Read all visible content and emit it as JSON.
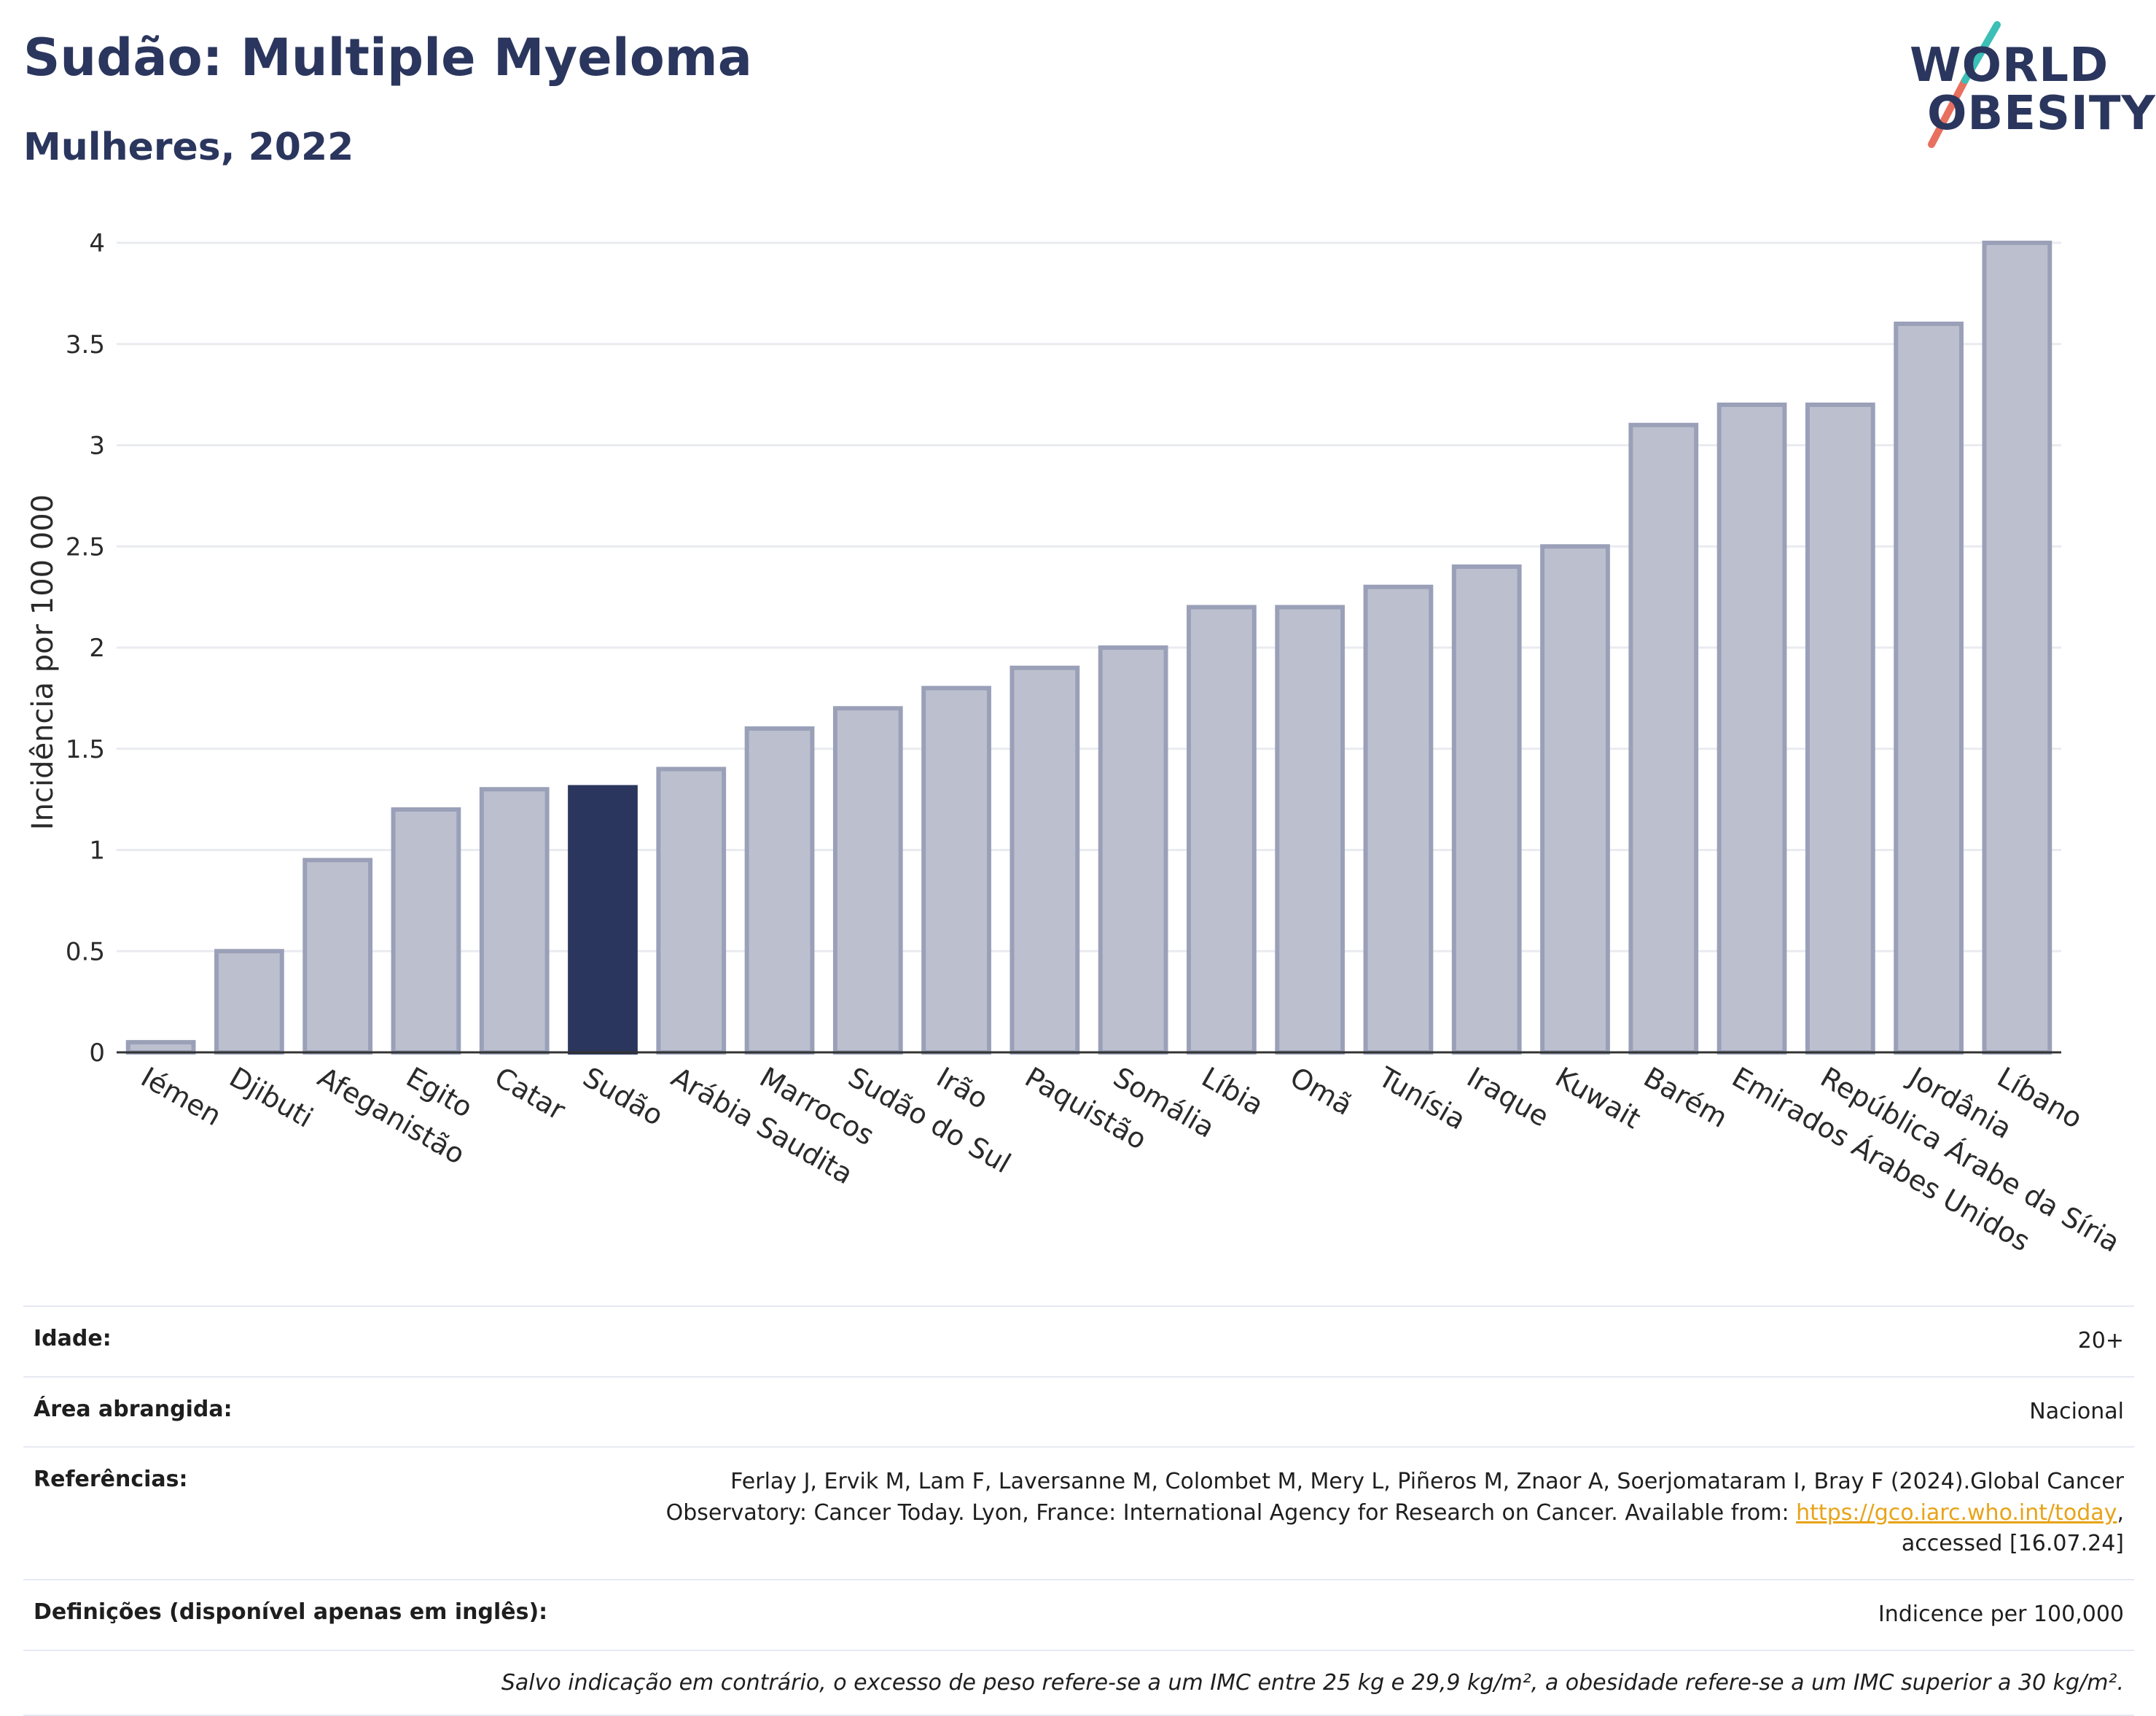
{
  "header": {
    "title": "Sudão: Multiple Myeloma",
    "subtitle": "Mulheres, 2022"
  },
  "logo": {
    "line1": "WORLD",
    "line2": "OBESITY",
    "icon": "world-obesity-slash-logo"
  },
  "colors": {
    "bar_default": "#bcc0ce",
    "bar_border": "#9aa0b8",
    "bar_highlight": "#2b365e",
    "grid": "#e9ebf0",
    "title": "#2b365e",
    "link": "#e8a317"
  },
  "chart_data": {
    "type": "bar",
    "ylabel": "Incidência por 100 000",
    "ylim": [
      0,
      4.2
    ],
    "yticks": [
      0,
      0.5,
      1,
      1.5,
      2,
      2.5,
      3,
      3.5,
      4
    ],
    "ytick_labels": [
      "0",
      "0.5",
      "1",
      "1.5",
      "2",
      "2.5",
      "3",
      "3.5",
      "4"
    ],
    "grid": true,
    "highlight": "Sudão",
    "categories": [
      "Iémen",
      "Djibuti",
      "Afeganistão",
      "Egito",
      "Catar",
      "Sudão",
      "Arábia Saudita",
      "Marrocos",
      "Sudão do Sul",
      "Irão",
      "Paquistão",
      "Somália",
      "Líbia",
      "Omã",
      "Tunísia",
      "Iraque",
      "Kuwait",
      "Barém",
      "Emirados Árabes Unidos",
      "República Árabe da Síria",
      "Jordânia",
      "Líbano"
    ],
    "values": [
      0.05,
      0.5,
      0.95,
      1.2,
      1.3,
      1.31,
      1.4,
      1.6,
      1.7,
      1.8,
      1.9,
      2.0,
      2.2,
      2.2,
      2.3,
      2.4,
      2.5,
      3.1,
      3.2,
      3.2,
      3.6,
      4.0
    ]
  },
  "info": {
    "age_label": "Idade:",
    "age_value": "20+",
    "area_label": "Área abrangida:",
    "area_value": "Nacional",
    "refs_label": "Referências:",
    "refs_text_1": "Ferlay J, Ervik M, Lam F, Laversanne M, Colombet M, Mery L, Piñeros M, Znaor A, Soerjomataram I, Bray F (2024).Global Cancer Observatory: Cancer Today. Lyon, France: International Agency for Research on Cancer. Available from: ",
    "refs_link": "https://gco.iarc.who.int/today",
    "refs_text_2": ", accessed [16.07.24]",
    "defs_label": "Definições (disponível apenas em inglês):",
    "defs_value": "Indicence per 100,000",
    "note": "Salvo indicação em contrário, o excesso de peso refere-se a um IMC entre 25 kg e 29,9 kg/m², a obesidade refere-se a um IMC superior a 30 kg/m²."
  }
}
